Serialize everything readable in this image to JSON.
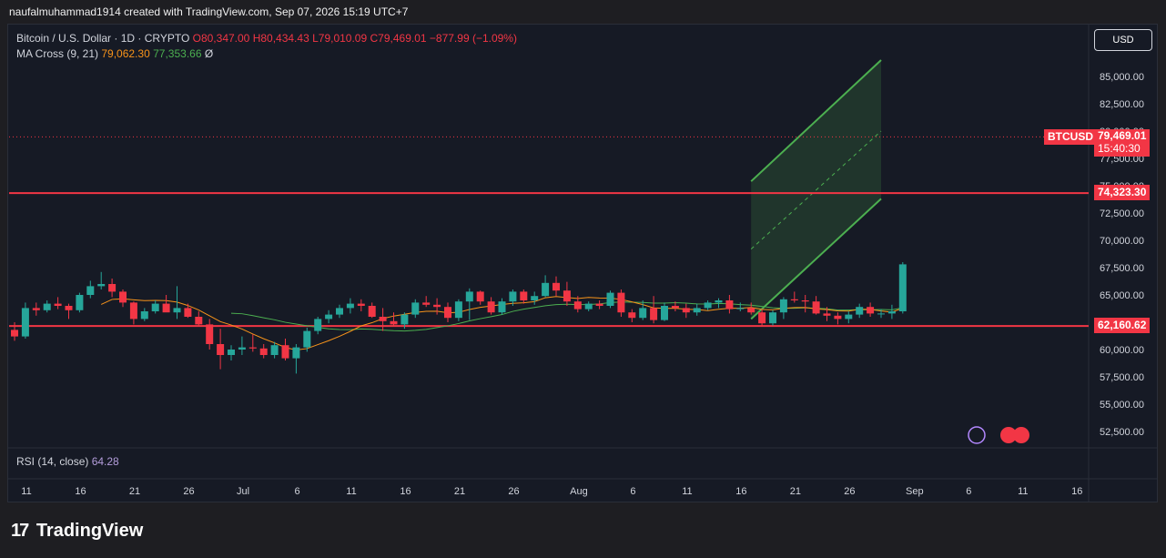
{
  "credit": "naufalmuhammad1914 created with TradingView.com, Sep 07, 2026 15:19 UTC+7",
  "legend": {
    "symbol": "Bitcoin / U.S. Dollar · 1D · CRYPTO",
    "open": "O80,347.00",
    "high": "H80,434.43",
    "low": "L79,010.09",
    "close": "C79,469.01",
    "change": "−877.99 (−1.09%)",
    "ma_label": "MA Cross (9, 21)",
    "ma_fast": "79,062.30",
    "ma_slow": "77,353.66",
    "ma_symbol": "Ø"
  },
  "rsi": {
    "label": "RSI (14, close)",
    "value": "64.28"
  },
  "currency_button": "USD",
  "tags": {
    "symbol_tag": "BTCUSD",
    "price": "79,469.01",
    "countdown": "15:40:30",
    "level_high": "74,323.30",
    "level_low": "62,160.62"
  },
  "brand": "TradingView",
  "colors": {
    "up": "#26a69a",
    "down": "#f23645",
    "ma_fast": "#f7931a",
    "ma_slow": "#4caf50",
    "channel": "#4caf50",
    "level": "#f23645"
  },
  "chart_data": {
    "type": "candlestick",
    "symbol": "BTCUSD",
    "ylim": [
      50500,
      87500
    ],
    "y_ticks": [
      "52,500.00",
      "55,000.00",
      "57,500.00",
      "60,000.00",
      "62,500.00",
      "65,000.00",
      "67,500.00",
      "70,000.00",
      "72,500.00",
      "75,000.00",
      "77,500.00",
      "80,000.00",
      "82,500.00",
      "85,000.00"
    ],
    "y_tick_values": [
      52500,
      55000,
      57500,
      60000,
      62500,
      65000,
      67500,
      70000,
      72500,
      75000,
      77500,
      80000,
      82500,
      85000
    ],
    "x_labels": [
      "11",
      "16",
      "21",
      "26",
      "Jul",
      "6",
      "11",
      "16",
      "21",
      "26",
      "Aug",
      "6",
      "11",
      "16",
      "21",
      "26",
      "Sep",
      "6",
      "11",
      "16"
    ],
    "x_label_index": [
      0,
      5,
      10,
      15,
      20,
      25,
      30,
      35,
      40,
      45,
      51,
      56,
      61,
      66,
      71,
      76,
      82,
      87,
      92,
      97
    ],
    "horizontal_levels": [
      74323.3,
      62160.62
    ],
    "last_price": 79469.01,
    "candles": [
      [
        61800,
        62500,
        60800,
        61200
      ],
      [
        61200,
        64300,
        61000,
        63800
      ],
      [
        63800,
        64300,
        63100,
        63600
      ],
      [
        63600,
        64500,
        63400,
        64200
      ],
      [
        64200,
        64800,
        63700,
        64000
      ],
      [
        64000,
        64200,
        62800,
        63600
      ],
      [
        63600,
        65200,
        63400,
        65000
      ],
      [
        65000,
        66300,
        64700,
        65800
      ],
      [
        65800,
        67100,
        65500,
        66000
      ],
      [
        66000,
        66500,
        64800,
        65300
      ],
      [
        65300,
        65500,
        63900,
        64300
      ],
      [
        64300,
        64400,
        62300,
        62800
      ],
      [
        62800,
        63800,
        62600,
        63500
      ],
      [
        63500,
        64500,
        63300,
        64200
      ],
      [
        64200,
        65000,
        63500,
        63400
      ],
      [
        63400,
        65800,
        62800,
        63800
      ],
      [
        63800,
        64200,
        62900,
        63000
      ],
      [
        63000,
        63500,
        62100,
        62300
      ],
      [
        62300,
        62800,
        60000,
        60500
      ],
      [
        60500,
        61900,
        58200,
        59500
      ],
      [
        59500,
        60400,
        59000,
        60000
      ],
      [
        60000,
        61200,
        59500,
        60200
      ],
      [
        60200,
        61400,
        59800,
        60100
      ],
      [
        60100,
        60500,
        59200,
        59500
      ],
      [
        59500,
        60700,
        59200,
        60400
      ],
      [
        60400,
        61000,
        59000,
        59200
      ],
      [
        59200,
        60500,
        57800,
        60200
      ],
      [
        60200,
        62000,
        59800,
        61700
      ],
      [
        61700,
        63000,
        61400,
        62800
      ],
      [
        62800,
        63600,
        62400,
        63200
      ],
      [
        63200,
        64100,
        62900,
        63800
      ],
      [
        63800,
        64700,
        63300,
        64200
      ],
      [
        64200,
        64600,
        63500,
        64000
      ],
      [
        64000,
        64300,
        62900,
        63000
      ],
      [
        63000,
        63800,
        61700,
        62600
      ],
      [
        62600,
        63400,
        62200,
        62300
      ],
      [
        62300,
        63400,
        61900,
        63200
      ],
      [
        63200,
        64600,
        62900,
        64300
      ],
      [
        64300,
        64900,
        63900,
        64100
      ],
      [
        64100,
        64700,
        63200,
        63900
      ],
      [
        63900,
        64300,
        62500,
        62900
      ],
      [
        62900,
        64600,
        62600,
        64400
      ],
      [
        64400,
        65600,
        62700,
        65300
      ],
      [
        65300,
        65400,
        64100,
        64400
      ],
      [
        64400,
        64800,
        63200,
        63400
      ],
      [
        63400,
        64700,
        63200,
        64400
      ],
      [
        64400,
        65500,
        64000,
        65300
      ],
      [
        65300,
        65500,
        64200,
        64500
      ],
      [
        64500,
        65300,
        64100,
        64900
      ],
      [
        64900,
        66800,
        64800,
        66100
      ],
      [
        66100,
        66700,
        64900,
        65400
      ],
      [
        65400,
        66200,
        64000,
        64400
      ],
      [
        64400,
        64900,
        63400,
        63700
      ],
      [
        63700,
        64400,
        63500,
        64200
      ],
      [
        64200,
        64500,
        63700,
        64000
      ],
      [
        64000,
        65400,
        63800,
        65200
      ],
      [
        65200,
        65500,
        63000,
        63400
      ],
      [
        63400,
        63700,
        62500,
        62900
      ],
      [
        62900,
        64500,
        62700,
        63800
      ],
      [
        63800,
        64900,
        62400,
        62700
      ],
      [
        62700,
        64300,
        62600,
        64000
      ],
      [
        64000,
        64400,
        63500,
        63800
      ],
      [
        63800,
        64200,
        62900,
        63400
      ],
      [
        63400,
        64200,
        63100,
        63800
      ],
      [
        63800,
        64500,
        63600,
        64300
      ],
      [
        64300,
        64700,
        63800,
        64500
      ],
      [
        64500,
        65000,
        63300,
        63700
      ],
      [
        63700,
        64300,
        63500,
        63800
      ],
      [
        63800,
        64300,
        63200,
        63400
      ],
      [
        63400,
        63700,
        62200,
        62400
      ],
      [
        62400,
        63600,
        62200,
        63400
      ],
      [
        63400,
        64800,
        62800,
        64600
      ],
      [
        64600,
        65300,
        64300,
        64500
      ],
      [
        64500,
        65000,
        63400,
        64400
      ],
      [
        64400,
        64900,
        63200,
        63300
      ],
      [
        63300,
        63900,
        62600,
        63100
      ],
      [
        63100,
        63400,
        62300,
        62800
      ],
      [
        62800,
        63500,
        62400,
        63200
      ],
      [
        63200,
        64200,
        62900,
        63900
      ],
      [
        63900,
        64300,
        63000,
        63300
      ],
      [
        63300,
        63700,
        62900,
        63300
      ],
      [
        63300,
        64100,
        62800,
        63500
      ],
      [
        63500,
        68000,
        63300,
        67800
      ]
    ]
  }
}
